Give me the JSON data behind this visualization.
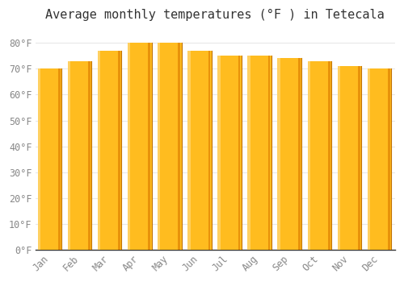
{
  "title": "Average monthly temperatures (°F ) in Tetecala",
  "months": [
    "Jan",
    "Feb",
    "Mar",
    "Apr",
    "May",
    "Jun",
    "Jul",
    "Aug",
    "Sep",
    "Oct",
    "Nov",
    "Dec"
  ],
  "values": [
    70,
    73,
    77,
    80,
    80,
    77,
    75,
    75,
    74,
    73,
    71,
    70
  ],
  "bar_color_center": "#FFBC1F",
  "bar_color_edge_right": "#E8920A",
  "bar_color_edge_left": "#FFD060",
  "ylim": [
    0,
    85
  ],
  "yticks": [
    0,
    10,
    20,
    30,
    40,
    50,
    60,
    70,
    80
  ],
  "ytick_labels": [
    "0°F",
    "10°F",
    "20°F",
    "30°F",
    "40°F",
    "50°F",
    "60°F",
    "70°F",
    "80°F"
  ],
  "background_color": "#ffffff",
  "plot_bg_color": "#ffffff",
  "grid_color": "#e8e8e8",
  "title_fontsize": 11,
  "tick_fontsize": 8.5,
  "font_family": "monospace",
  "tick_color": "#888888",
  "title_color": "#333333",
  "axis_line_color": "#333333",
  "bar_width": 0.75
}
